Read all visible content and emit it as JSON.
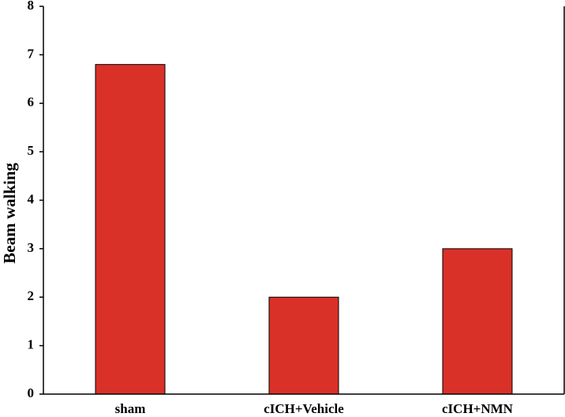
{
  "chart_data": {
    "type": "bar",
    "y_label": "Beam walking",
    "categories": [
      "sham",
      "cICH+Vehicle",
      "cICH+NMN"
    ],
    "values": [
      6.8,
      2,
      3
    ],
    "color": "#d93128",
    "ylim": [
      0,
      8
    ],
    "yticks": [
      0,
      1,
      2,
      3,
      4,
      5,
      6,
      7,
      8
    ],
    "grid": false
  }
}
